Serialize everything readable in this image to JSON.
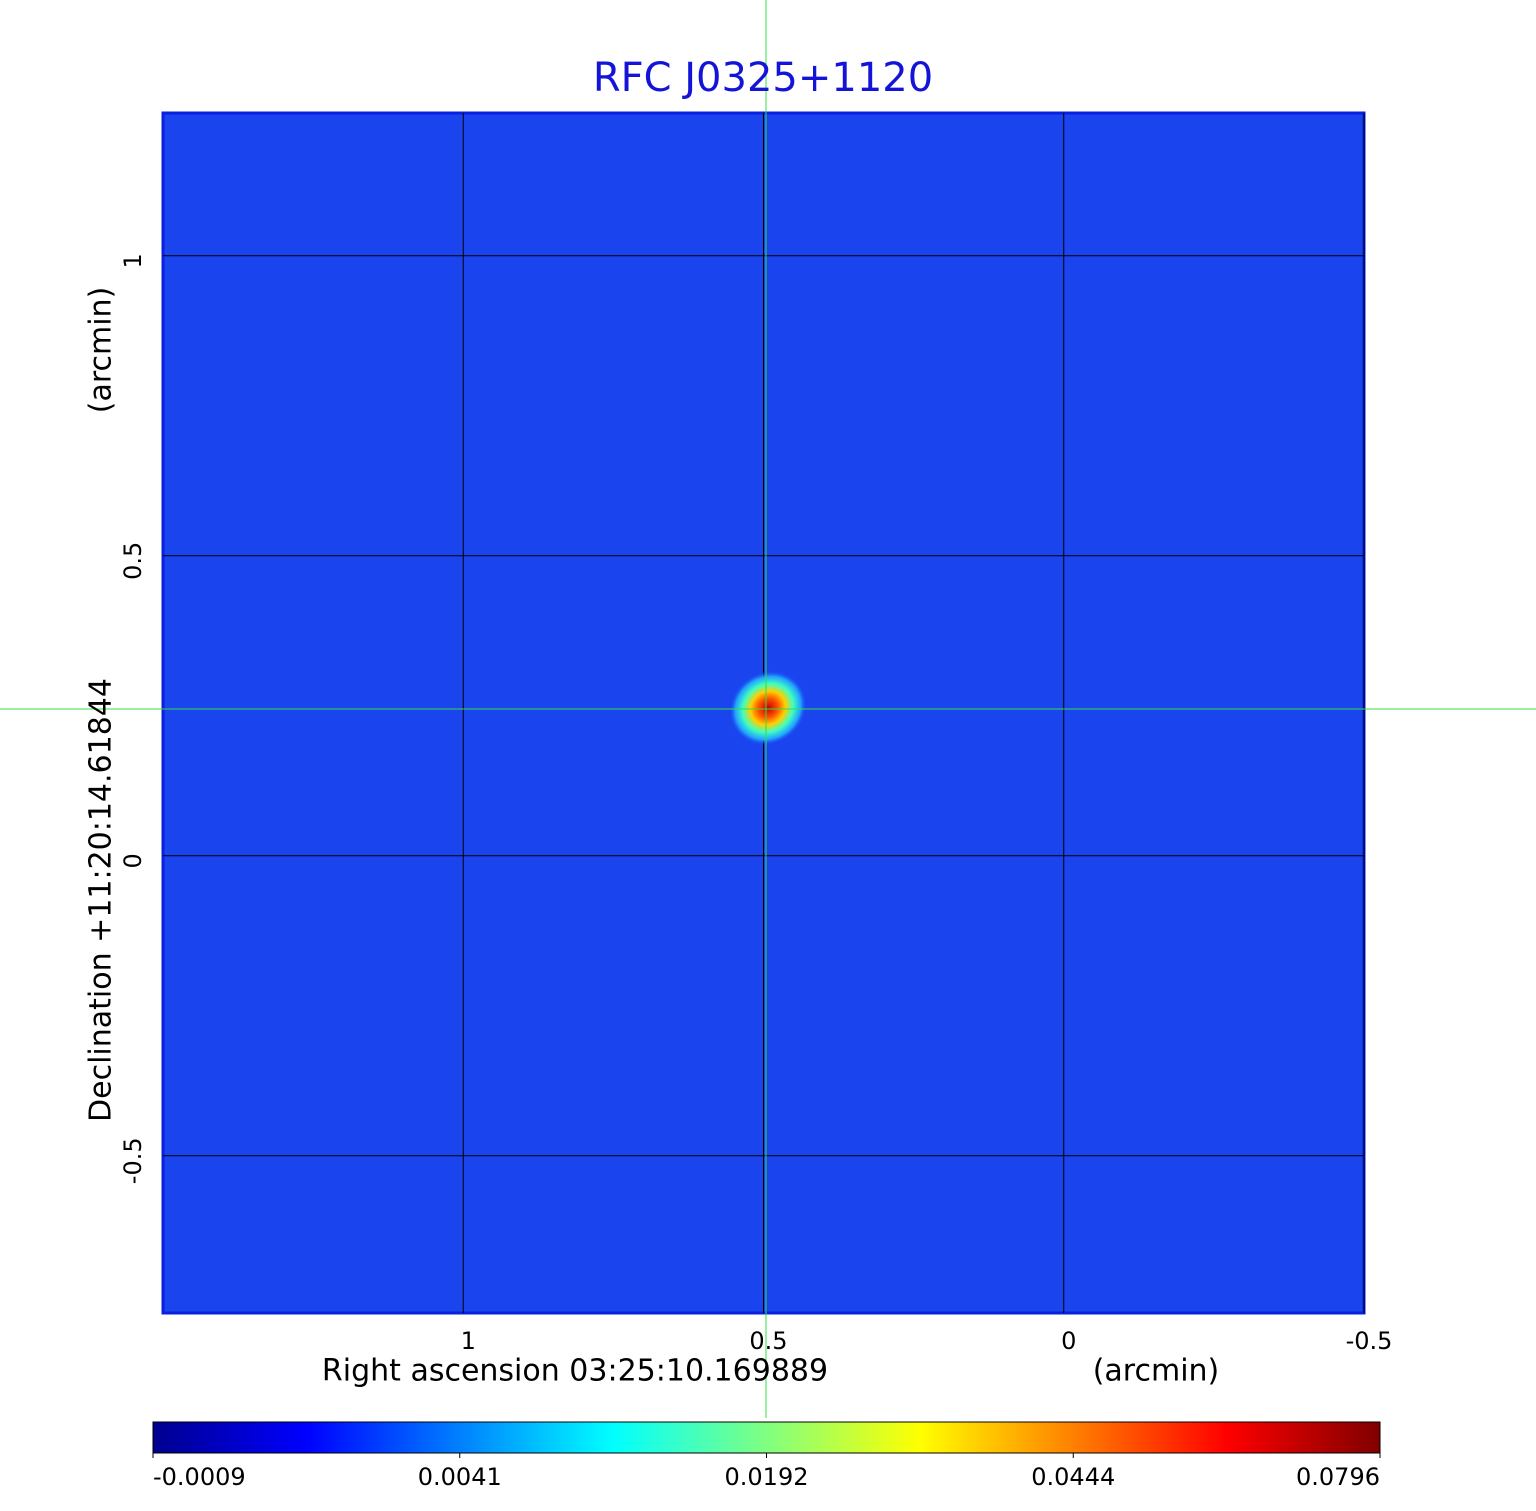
{
  "chart_data": {
    "type": "image",
    "title": "RFC J0325+1120",
    "x_label": "Right ascension  03:25:10.169889",
    "x_unit": "(arcmin)",
    "y_label": "Declination  +11:20:14.61844",
    "y_unit": "(arcmin)",
    "xlim": [
      1.5,
      -0.5
    ],
    "xticks": [
      1.0,
      0.5,
      0.0,
      -0.5
    ],
    "ylim": [
      -0.762,
      1.238
    ],
    "yticks": [
      1.0,
      0.5,
      0.0,
      -0.5
    ],
    "grid": true,
    "colormap": "jet",
    "colorbar_ticks": [
      -0.0009,
      0.0041,
      0.0192,
      0.0444,
      0.0796
    ]
  }
}
